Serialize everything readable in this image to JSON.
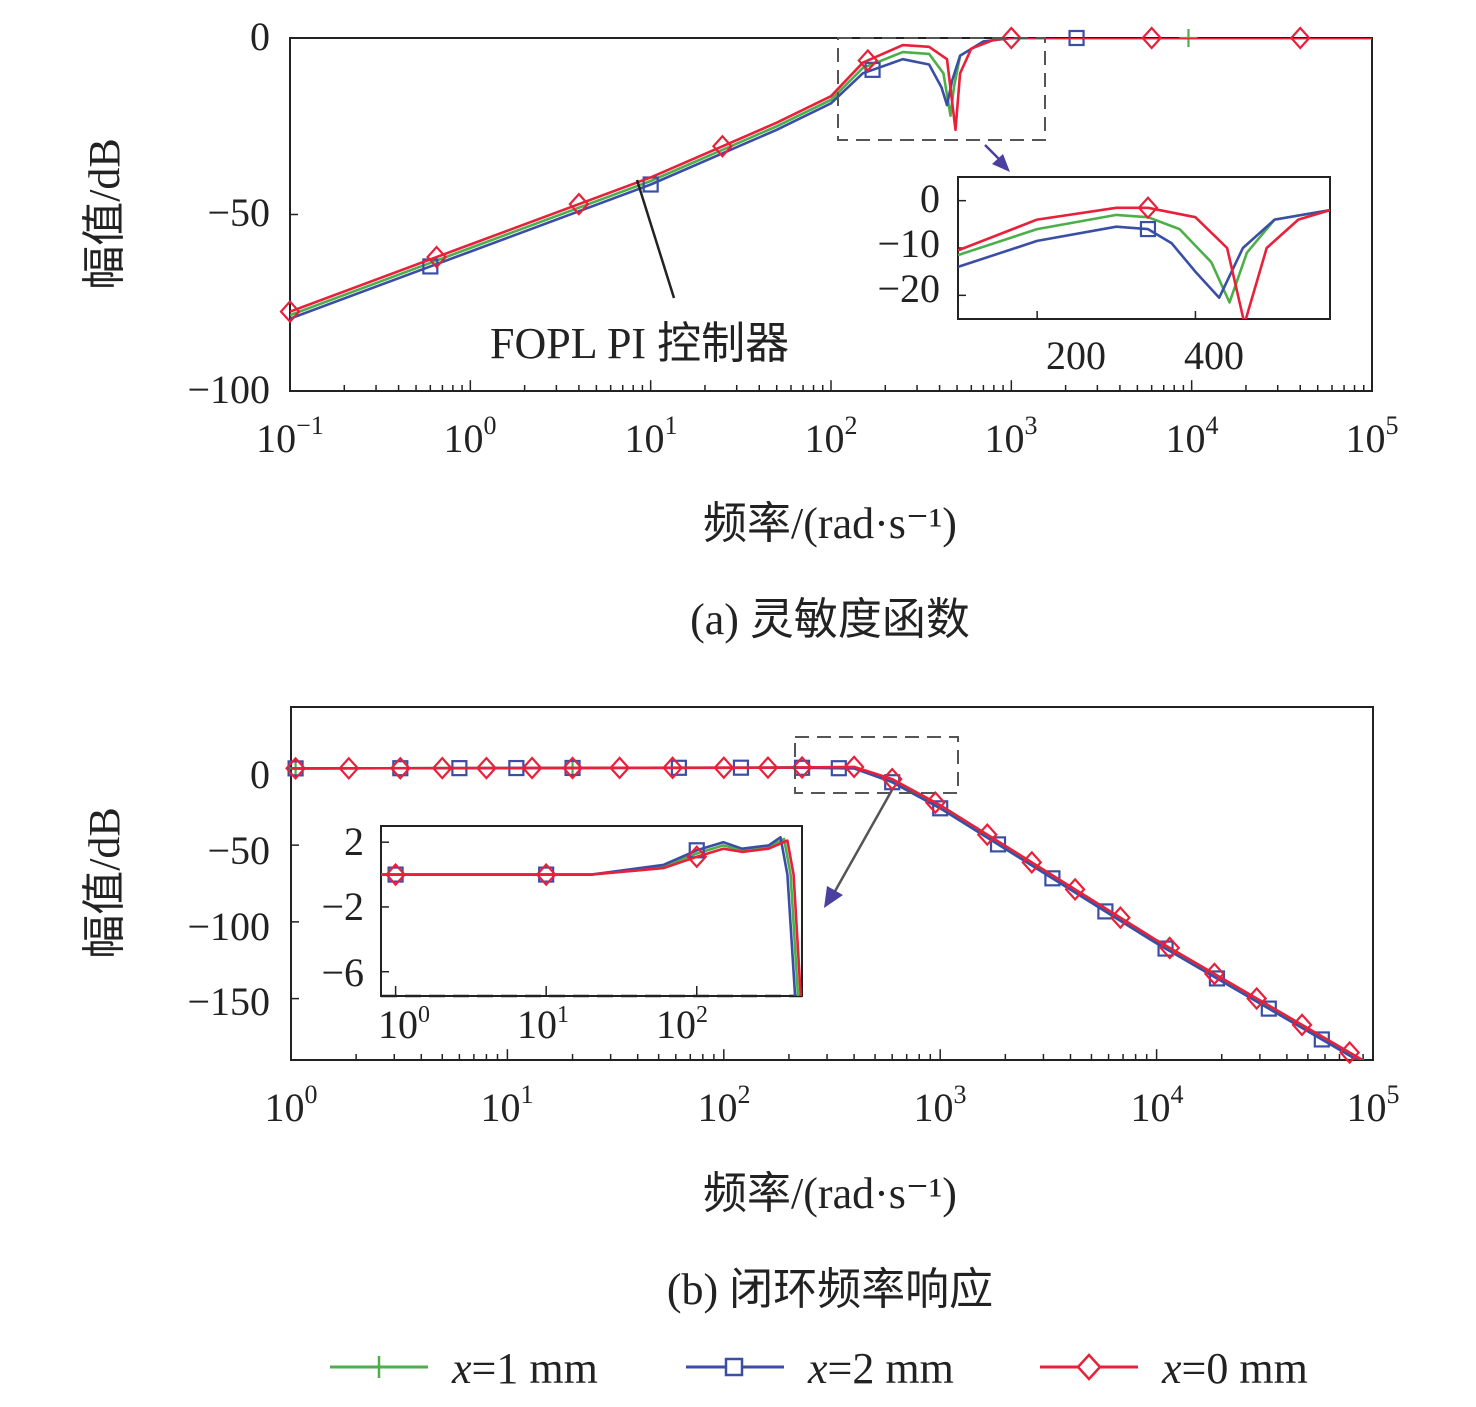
{
  "colors": {
    "x1": "#4daf4a",
    "x2": "#3b4ea6",
    "x0": "#e8203a",
    "frame": "#222222",
    "dash": "#555555",
    "arrow": "#4b3fa0"
  },
  "legend": [
    {
      "key": "x1",
      "label_var": "x",
      "label_rest": "=1 mm",
      "marker": "plus"
    },
    {
      "key": "x2",
      "label_var": "x",
      "label_rest": "=2 mm",
      "marker": "square"
    },
    {
      "key": "x0",
      "label_var": "x",
      "label_rest": "=0 mm",
      "marker": "diamond"
    }
  ],
  "chart_data": [
    {
      "id": "a",
      "type": "line",
      "caption": "(a) 灵敏度函数",
      "xlabel": "频率/(rad·s⁻¹)",
      "ylabel": "幅值/dB",
      "xscale": "log",
      "xlim": [
        0.1,
        100000
      ],
      "ylim": [
        -100,
        0
      ],
      "xticks": [
        {
          "base": "10",
          "exp": "−1"
        },
        {
          "base": "10",
          "exp": "0"
        },
        {
          "base": "10",
          "exp": "1"
        },
        {
          "base": "10",
          "exp": "2"
        },
        {
          "base": "10",
          "exp": "3"
        },
        {
          "base": "10",
          "exp": "4"
        },
        {
          "base": "10",
          "exp": "5"
        }
      ],
      "yticks": [
        "0",
        "−50",
        "−100"
      ],
      "annotation": "FOPL PI 控制器",
      "series": [
        {
          "key": "x1",
          "label": "x=1 mm",
          "points": [
            [
              0.1,
              -78.5
            ],
            [
              1,
              -59.5
            ],
            [
              10,
              -40.5
            ],
            [
              50,
              -25
            ],
            [
              100,
              -17.5
            ],
            [
              150,
              -8.5
            ],
            [
              250,
              -4
            ],
            [
              350,
              -4.5
            ],
            [
              420,
              -10
            ],
            [
              460,
              -22
            ],
            [
              480,
              -14
            ],
            [
              520,
              -5
            ],
            [
              700,
              -1
            ],
            [
              1000,
              0
            ],
            [
              100000,
              0
            ]
          ]
        },
        {
          "key": "x2",
          "label": "x=2 mm",
          "points": [
            [
              0.1,
              -79.5
            ],
            [
              1,
              -60.5
            ],
            [
              10,
              -41.5
            ],
            [
              50,
              -26
            ],
            [
              100,
              -18.5
            ],
            [
              150,
              -10
            ],
            [
              250,
              -6
            ],
            [
              350,
              -7.5
            ],
            [
              410,
              -14
            ],
            [
              440,
              -19
            ],
            [
              470,
              -12
            ],
            [
              520,
              -5
            ],
            [
              700,
              -1
            ],
            [
              1000,
              0
            ],
            [
              100000,
              0
            ]
          ]
        },
        {
          "key": "x0",
          "label": "x=0 mm",
          "points": [
            [
              0.1,
              -77.5
            ],
            [
              1,
              -58.5
            ],
            [
              10,
              -39.5
            ],
            [
              50,
              -24
            ],
            [
              100,
              -16.5
            ],
            [
              150,
              -7
            ],
            [
              250,
              -2
            ],
            [
              350,
              -2.5
            ],
            [
              440,
              -6
            ],
            [
              490,
              -26
            ],
            [
              520,
              -10
            ],
            [
              600,
              -3
            ],
            [
              800,
              -0.5
            ],
            [
              1000,
              0
            ],
            [
              100000,
              0
            ]
          ]
        }
      ],
      "inset": {
        "xlim": [
          100,
          570
        ],
        "ylim": [
          -25,
          5
        ],
        "xticks": [
          "200",
          "400"
        ],
        "yticks": [
          "0",
          "−10",
          "−20"
        ],
        "series": [
          {
            "key": "x1",
            "points": [
              [
                100,
                -11.5
              ],
              [
                200,
                -6
              ],
              [
                300,
                -3
              ],
              [
                340,
                -3.5
              ],
              [
                380,
                -6
              ],
              [
                420,
                -13
              ],
              [
                443,
                -21.5
              ],
              [
                465,
                -11
              ],
              [
                500,
                -4
              ],
              [
                570,
                -2
              ]
            ]
          },
          {
            "key": "x2",
            "points": [
              [
                100,
                -14
              ],
              [
                200,
                -8.5
              ],
              [
                300,
                -5.5
              ],
              [
                340,
                -6
              ],
              [
                370,
                -9
              ],
              [
                400,
                -15
              ],
              [
                430,
                -20.5
              ],
              [
                460,
                -10
              ],
              [
                500,
                -4
              ],
              [
                570,
                -2
              ]
            ]
          },
          {
            "key": "x0",
            "points": [
              [
                100,
                -10.5
              ],
              [
                200,
                -4
              ],
              [
                300,
                -1.5
              ],
              [
                340,
                -1.5
              ],
              [
                400,
                -3.5
              ],
              [
                440,
                -10
              ],
              [
                462,
                -26
              ],
              [
                490,
                -10
              ],
              [
                530,
                -4
              ],
              [
                570,
                -2
              ]
            ]
          }
        ]
      }
    },
    {
      "id": "b",
      "type": "line",
      "caption": "(b) 闭环频率响应",
      "xlabel": "频率/(rad·s⁻¹)",
      "ylabel": "幅值/dB",
      "xscale": "log",
      "xlim": [
        1,
        100000
      ],
      "ylim": [
        -190,
        40
      ],
      "xticks": [
        {
          "base": "10",
          "exp": "0"
        },
        {
          "base": "10",
          "exp": "1"
        },
        {
          "base": "10",
          "exp": "2"
        },
        {
          "base": "10",
          "exp": "3"
        },
        {
          "base": "10",
          "exp": "4"
        },
        {
          "base": "10",
          "exp": "5"
        }
      ],
      "yticks": [
        "0",
        "−50",
        "−100",
        "−150"
      ],
      "series": [
        {
          "key": "x1",
          "points": [
            [
              1,
              0
            ],
            [
              200,
              0.5
            ],
            [
              400,
              0.5
            ],
            [
              600,
              -8
            ],
            [
              1000,
              -25
            ],
            [
              10000,
              -113
            ],
            [
              100000,
              -195
            ]
          ]
        },
        {
          "key": "x2",
          "points": [
            [
              1,
              0
            ],
            [
              200,
              0.5
            ],
            [
              400,
              0
            ],
            [
              600,
              -9
            ],
            [
              1000,
              -26
            ],
            [
              10000,
              -114
            ],
            [
              100000,
              -196
            ]
          ]
        },
        {
          "key": "x0",
          "points": [
            [
              1,
              0
            ],
            [
              200,
              0.5
            ],
            [
              400,
              1
            ],
            [
              600,
              -7
            ],
            [
              1000,
              -24
            ],
            [
              10000,
              -112
            ],
            [
              100000,
              -194
            ]
          ]
        }
      ],
      "inset": {
        "xscale": "log",
        "xlim": [
          0.8,
          500
        ],
        "ylim": [
          -7.5,
          3
        ],
        "xticks": [
          {
            "base": "10",
            "exp": "0"
          },
          {
            "base": "10",
            "exp": "1"
          },
          {
            "base": "10",
            "exp": "2"
          }
        ],
        "yticks": [
          "2",
          "−2",
          "−6"
        ],
        "series": [
          {
            "key": "x1",
            "points": [
              [
                0.8,
                0
              ],
              [
                20,
                0
              ],
              [
                60,
                0.5
              ],
              [
                100,
                1.3
              ],
              [
                150,
                1.8
              ],
              [
                200,
                1.5
              ],
              [
                300,
                1.7
              ],
              [
                380,
                2.2
              ],
              [
                420,
                0
              ],
              [
                470,
                -7.5
              ]
            ]
          },
          {
            "key": "x2",
            "points": [
              [
                0.8,
                0
              ],
              [
                20,
                0
              ],
              [
                60,
                0.6
              ],
              [
                100,
                1.5
              ],
              [
                150,
                2.0
              ],
              [
                200,
                1.6
              ],
              [
                300,
                1.8
              ],
              [
                360,
                2.3
              ],
              [
                400,
                0
              ],
              [
                450,
                -7.5
              ]
            ]
          },
          {
            "key": "x0",
            "points": [
              [
                0.8,
                0
              ],
              [
                20,
                0
              ],
              [
                60,
                0.4
              ],
              [
                100,
                1.1
              ],
              [
                150,
                1.6
              ],
              [
                200,
                1.4
              ],
              [
                300,
                1.6
              ],
              [
                400,
                2.1
              ],
              [
                440,
                0
              ],
              [
                490,
                -7.5
              ]
            ]
          }
        ]
      }
    }
  ]
}
